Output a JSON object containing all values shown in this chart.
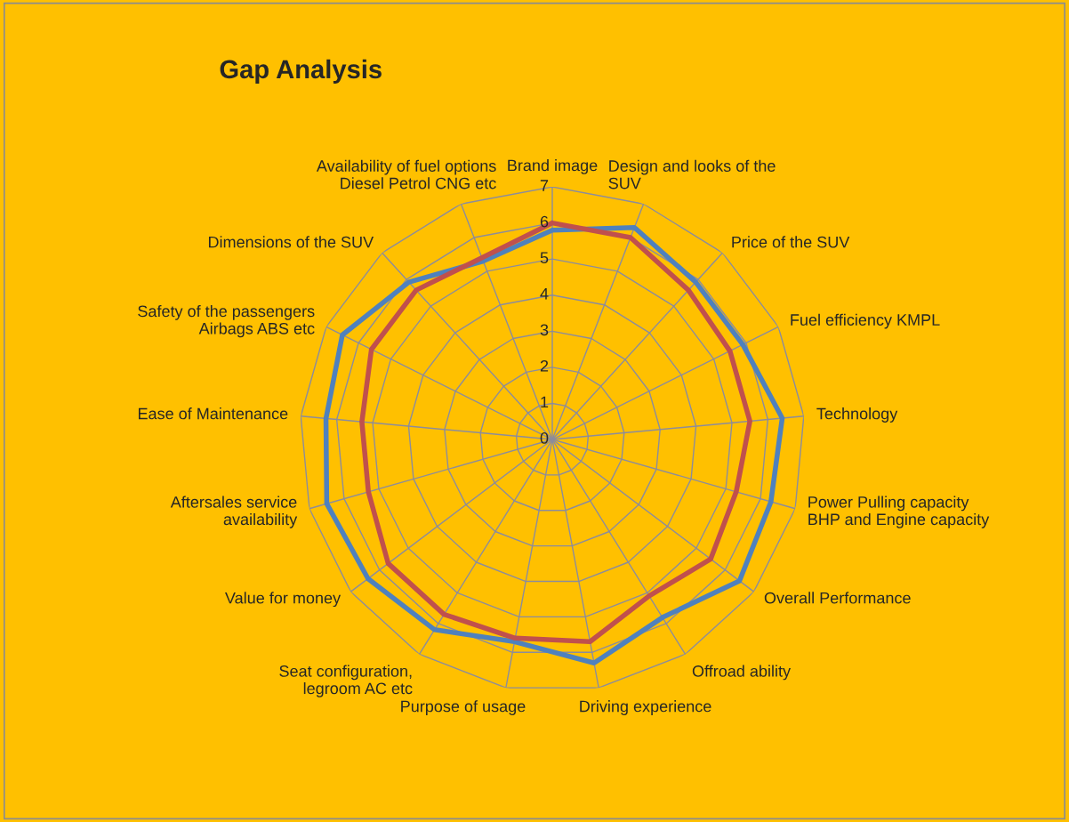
{
  "chart_data": {
    "type": "radar",
    "title": "Gap Analysis",
    "categories": [
      "Brand image",
      "Design and looks of the\nSUV",
      "Price of the SUV",
      "Fuel efficiency KMPL",
      "Technology",
      "Power Pulling capacity\nBHP and Engine capacity",
      "Overall Performance",
      "Offroad ability",
      "Driving experience",
      "Purpose of usage",
      "Seat configuration,\nlegroom AC etc",
      "Value for money",
      "Aftersales service\navailability",
      "Ease of Maintenance",
      "Safety of the passengers\nAirbags ABS etc",
      "Dimensions of the SUV",
      "Availability of fuel options\nDiesel Petrol CNG etc"
    ],
    "series": [
      {
        "color": "#4f81bd",
        "values": [
          5.8,
          6.3,
          5.9,
          5.9,
          6.4,
          6.3,
          6.5,
          5.8,
          6.3,
          5.7,
          6.2,
          6.4,
          6.5,
          6.3,
          6.5,
          5.9,
          5.3
        ]
      },
      {
        "color": "#c0504d",
        "values": [
          6.0,
          6.0,
          5.6,
          5.5,
          5.5,
          5.3,
          5.5,
          5.1,
          5.7,
          5.6,
          5.7,
          5.7,
          5.3,
          5.3,
          5.6,
          5.6,
          5.4
        ]
      }
    ],
    "ylim": [
      0,
      7
    ],
    "yticks": [
      0,
      1,
      2,
      3,
      4,
      5,
      6,
      7
    ],
    "grid": true,
    "legend": false
  }
}
